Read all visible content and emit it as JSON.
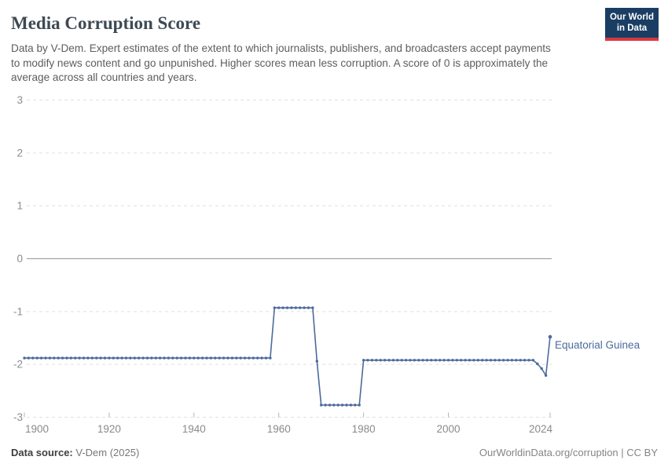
{
  "header": {
    "logo_line1": "Our World",
    "logo_line2": "in Data"
  },
  "colors": {
    "line": "#4c6a9c",
    "logo_background": "#1a3d63",
    "logo_stripe": "#d8393f",
    "grid": "#e0e0e0",
    "zero_line": "#a3a3a3",
    "axis_tick": "#b5b5b5"
  },
  "chart_data": {
    "type": "line",
    "title": "Media Corruption Score",
    "subtitle": "Data by V-Dem. Expert estimates of the extent to which journalists, publishers, and broadcasters accept payments to modify news content and go unpunished. Higher scores mean less corruption. A score of 0 is approximately the average across all countries and years.",
    "xlabel": "",
    "ylabel": "",
    "xlim": [
      1900,
      2024
    ],
    "ylim": [
      -3,
      3
    ],
    "x_ticks": [
      1900,
      1920,
      1940,
      1960,
      1980,
      2000,
      2024
    ],
    "y_ticks": [
      3,
      2,
      1,
      0,
      -1,
      -2,
      -3
    ],
    "grid": "horizontal dashed lines, solid darker zero line",
    "legend_position": "label at end of line",
    "series": [
      {
        "name": "Equatorial Guinea",
        "points": [
          [
            1900,
            -1.88
          ],
          [
            1901,
            -1.88
          ],
          [
            1902,
            -1.88
          ],
          [
            1903,
            -1.88
          ],
          [
            1904,
            -1.88
          ],
          [
            1905,
            -1.88
          ],
          [
            1906,
            -1.88
          ],
          [
            1907,
            -1.88
          ],
          [
            1908,
            -1.88
          ],
          [
            1909,
            -1.88
          ],
          [
            1910,
            -1.88
          ],
          [
            1911,
            -1.88
          ],
          [
            1912,
            -1.88
          ],
          [
            1913,
            -1.88
          ],
          [
            1914,
            -1.88
          ],
          [
            1915,
            -1.88
          ],
          [
            1916,
            -1.88
          ],
          [
            1917,
            -1.88
          ],
          [
            1918,
            -1.88
          ],
          [
            1919,
            -1.88
          ],
          [
            1920,
            -1.88
          ],
          [
            1921,
            -1.88
          ],
          [
            1922,
            -1.88
          ],
          [
            1923,
            -1.88
          ],
          [
            1924,
            -1.88
          ],
          [
            1925,
            -1.88
          ],
          [
            1926,
            -1.88
          ],
          [
            1927,
            -1.88
          ],
          [
            1928,
            -1.88
          ],
          [
            1929,
            -1.88
          ],
          [
            1930,
            -1.88
          ],
          [
            1931,
            -1.88
          ],
          [
            1932,
            -1.88
          ],
          [
            1933,
            -1.88
          ],
          [
            1934,
            -1.88
          ],
          [
            1935,
            -1.88
          ],
          [
            1936,
            -1.88
          ],
          [
            1937,
            -1.88
          ],
          [
            1938,
            -1.88
          ],
          [
            1939,
            -1.88
          ],
          [
            1940,
            -1.88
          ],
          [
            1941,
            -1.88
          ],
          [
            1942,
            -1.88
          ],
          [
            1943,
            -1.88
          ],
          [
            1944,
            -1.88
          ],
          [
            1945,
            -1.88
          ],
          [
            1946,
            -1.88
          ],
          [
            1947,
            -1.88
          ],
          [
            1948,
            -1.88
          ],
          [
            1949,
            -1.88
          ],
          [
            1950,
            -1.88
          ],
          [
            1951,
            -1.88
          ],
          [
            1952,
            -1.88
          ],
          [
            1953,
            -1.88
          ],
          [
            1954,
            -1.88
          ],
          [
            1955,
            -1.88
          ],
          [
            1956,
            -1.88
          ],
          [
            1957,
            -1.88
          ],
          [
            1958,
            -1.88
          ],
          [
            1959,
            -0.93
          ],
          [
            1960,
            -0.93
          ],
          [
            1961,
            -0.93
          ],
          [
            1962,
            -0.93
          ],
          [
            1963,
            -0.93
          ],
          [
            1964,
            -0.93
          ],
          [
            1965,
            -0.93
          ],
          [
            1966,
            -0.93
          ],
          [
            1967,
            -0.93
          ],
          [
            1968,
            -0.93
          ],
          [
            1969,
            -1.94
          ],
          [
            1970,
            -2.77
          ],
          [
            1971,
            -2.77
          ],
          [
            1972,
            -2.77
          ],
          [
            1973,
            -2.77
          ],
          [
            1974,
            -2.77
          ],
          [
            1975,
            -2.77
          ],
          [
            1976,
            -2.77
          ],
          [
            1977,
            -2.77
          ],
          [
            1978,
            -2.77
          ],
          [
            1979,
            -2.77
          ],
          [
            1980,
            -1.92
          ],
          [
            1981,
            -1.92
          ],
          [
            1982,
            -1.92
          ],
          [
            1983,
            -1.92
          ],
          [
            1984,
            -1.92
          ],
          [
            1985,
            -1.92
          ],
          [
            1986,
            -1.92
          ],
          [
            1987,
            -1.92
          ],
          [
            1988,
            -1.92
          ],
          [
            1989,
            -1.92
          ],
          [
            1990,
            -1.92
          ],
          [
            1991,
            -1.92
          ],
          [
            1992,
            -1.92
          ],
          [
            1993,
            -1.92
          ],
          [
            1994,
            -1.92
          ],
          [
            1995,
            -1.92
          ],
          [
            1996,
            -1.92
          ],
          [
            1997,
            -1.92
          ],
          [
            1998,
            -1.92
          ],
          [
            1999,
            -1.92
          ],
          [
            2000,
            -1.92
          ],
          [
            2001,
            -1.92
          ],
          [
            2002,
            -1.92
          ],
          [
            2003,
            -1.92
          ],
          [
            2004,
            -1.92
          ],
          [
            2005,
            -1.92
          ],
          [
            2006,
            -1.92
          ],
          [
            2007,
            -1.92
          ],
          [
            2008,
            -1.92
          ],
          [
            2009,
            -1.92
          ],
          [
            2010,
            -1.92
          ],
          [
            2011,
            -1.92
          ],
          [
            2012,
            -1.92
          ],
          [
            2013,
            -1.92
          ],
          [
            2014,
            -1.92
          ],
          [
            2015,
            -1.92
          ],
          [
            2016,
            -1.92
          ],
          [
            2017,
            -1.92
          ],
          [
            2018,
            -1.92
          ],
          [
            2019,
            -1.92
          ],
          [
            2020,
            -1.92
          ],
          [
            2021,
            -1.99
          ],
          [
            2022,
            -2.08
          ],
          [
            2023,
            -2.21
          ],
          [
            2024,
            -1.48
          ]
        ]
      }
    ]
  },
  "footer": {
    "source_label": "Data source:",
    "source_value": "V-Dem (2025)",
    "link_text": "OurWorldinData.org/corruption | CC BY"
  }
}
